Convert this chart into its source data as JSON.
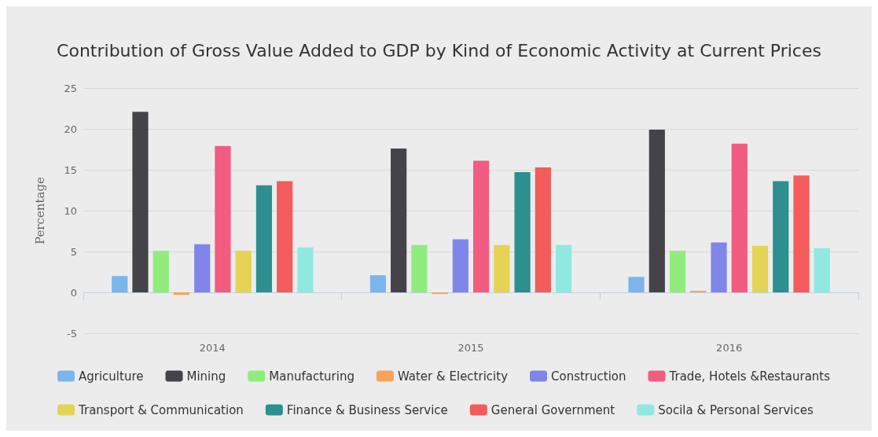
{
  "chart_data": {
    "type": "bar",
    "title": "Contribution of Gross Value Added to GDP by Kind of Economic Activity at Current Prices",
    "ylabel": "Percentage",
    "categories": [
      "2014",
      "2015",
      "2016"
    ],
    "series": [
      {
        "name": "Agriculture",
        "color": "#7cb5ec",
        "values": [
          2.0,
          2.1,
          1.9
        ]
      },
      {
        "name": "Mining",
        "color": "#434348",
        "values": [
          22.1,
          17.6,
          19.9
        ]
      },
      {
        "name": "Manufacturing",
        "color": "#90ed7d",
        "values": [
          5.1,
          5.8,
          5.1
        ]
      },
      {
        "name": "Water & Electricity",
        "color": "#f7a35c",
        "values": [
          -0.3,
          -0.2,
          0.2
        ]
      },
      {
        "name": "Construction",
        "color": "#8085e9",
        "values": [
          5.9,
          6.5,
          6.1
        ]
      },
      {
        "name": "Trade, Hotels &Restaurants",
        "color": "#f15c80",
        "values": [
          17.9,
          16.1,
          18.2
        ]
      },
      {
        "name": "Transport & Communication",
        "color": "#e4d354",
        "values": [
          5.1,
          5.8,
          5.7
        ]
      },
      {
        "name": "Finance & Business Service",
        "color": "#2b908f",
        "values": [
          13.1,
          14.7,
          13.6
        ]
      },
      {
        "name": "General Government",
        "color": "#f45b5b",
        "values": [
          13.6,
          15.3,
          14.3
        ]
      },
      {
        "name": "Socila & Personal Services",
        "color": "#91e8e1",
        "values": [
          5.5,
          5.8,
          5.4
        ]
      }
    ],
    "ylim": [
      -5,
      25
    ],
    "yticks": [
      -5,
      0,
      5,
      10,
      15,
      20,
      25
    ],
    "grid": "y",
    "legend": "bottom"
  }
}
